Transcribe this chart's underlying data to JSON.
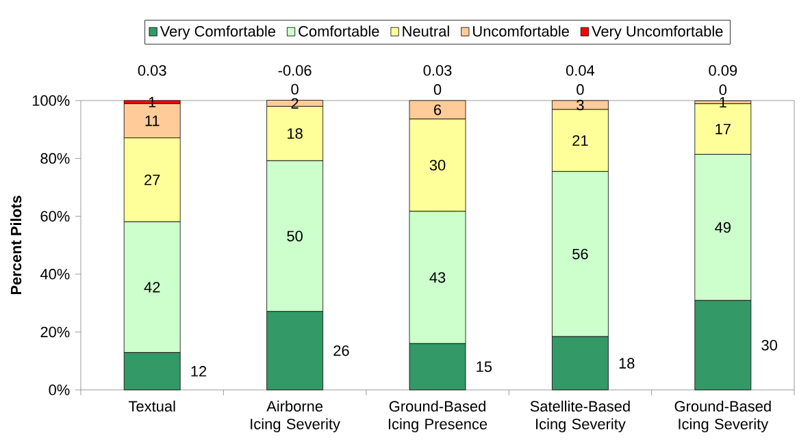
{
  "chart_data": {
    "type": "bar",
    "stacked": true,
    "ylabel": "Percent Pilots",
    "categories": [
      "Textual",
      "Airborne Icing Severity",
      "Ground-Based Icing Presence",
      "Satellite-Based Icing Severity",
      "Ground-Based Icing Severity"
    ],
    "series": [
      {
        "name": "Very Comfortable",
        "color": "#339966",
        "values": [
          12.9,
          27.1,
          16.0,
          18.4,
          30.9
        ]
      },
      {
        "name": "Comfortable",
        "color": "#ccffcc",
        "values": [
          45.2,
          52.1,
          45.7,
          57.1,
          50.5
        ]
      },
      {
        "name": "Neutral",
        "color": "#ffff99",
        "values": [
          29.0,
          18.8,
          31.9,
          21.4,
          17.5
        ]
      },
      {
        "name": "Uncomfortable",
        "color": "#ffcc99",
        "values": [
          11.8,
          2.1,
          6.4,
          3.1,
          1.0
        ]
      },
      {
        "name": "Very Uncomfortable",
        "color": "#ff0000",
        "values": [
          1.1,
          0,
          0,
          0,
          0
        ]
      }
    ],
    "ylim": [
      0,
      100
    ],
    "yticks": [
      {
        "value": 0,
        "label": "0%"
      },
      {
        "value": 20,
        "label": "20%"
      },
      {
        "value": 40,
        "label": "40%"
      },
      {
        "value": 60,
        "label": "60%"
      },
      {
        "value": 80,
        "label": "80%"
      },
      {
        "value": 100,
        "label": "100%"
      }
    ],
    "legend": "top",
    "grid": false,
    "annotations": [
      "0.03",
      "-0.06",
      "0.03",
      "0.04",
      "0.09",
      "12",
      "42",
      "27",
      "11",
      "1",
      "26",
      "50",
      "18",
      "2",
      "0",
      "15",
      "43",
      "30",
      "6",
      "0",
      "18",
      "56",
      "21",
      "3",
      "0",
      "30",
      "49",
      "17",
      "1",
      "0"
    ]
  }
}
